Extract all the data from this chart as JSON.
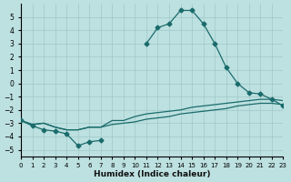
{
  "xlabel": "Humidex (Indice chaleur)",
  "xlim": [
    0,
    23
  ],
  "ylim": [
    -5.5,
    6.0
  ],
  "xticks": [
    0,
    1,
    2,
    3,
    4,
    5,
    6,
    7,
    8,
    9,
    10,
    11,
    12,
    13,
    14,
    15,
    16,
    17,
    18,
    19,
    20,
    21,
    22,
    23
  ],
  "yticks": [
    -5,
    -4,
    -3,
    -2,
    -1,
    0,
    1,
    2,
    3,
    4,
    5
  ],
  "background_color": "#bde0e0",
  "grid_color": "#a0c8c8",
  "line_color": "#1a6b6b",
  "curve_x": [
    0,
    1,
    2,
    3,
    4,
    5,
    6,
    7,
    8,
    9,
    10,
    11,
    12,
    13,
    14,
    15,
    16,
    17,
    18,
    19,
    20,
    21,
    22,
    23
  ],
  "curve_y": [
    -2.8,
    -3.2,
    -3.5,
    -3.6,
    -3.8,
    -4.7,
    -4.4,
    -4.3,
    null,
    null,
    null,
    3.0,
    4.2,
    4.5,
    5.5,
    5.5,
    4.5,
    3.0,
    1.2,
    0.0,
    -0.7,
    -0.8,
    -1.2,
    -1.7
  ],
  "line1_x": [
    0,
    1,
    2,
    3,
    4,
    5,
    6,
    7,
    8,
    9,
    10,
    11,
    12,
    13,
    14,
    15,
    16,
    17,
    18,
    19,
    20,
    21,
    22,
    23
  ],
  "line1_y": [
    -2.8,
    -3.1,
    -3.0,
    -3.3,
    -3.5,
    -3.5,
    -3.3,
    -3.3,
    -3.1,
    -3.0,
    -2.9,
    -2.7,
    -2.6,
    -2.5,
    -2.3,
    -2.2,
    -2.1,
    -2.0,
    -1.9,
    -1.7,
    -1.6,
    -1.5,
    -1.5,
    -1.6
  ],
  "line2_x": [
    0,
    1,
    2,
    3,
    4,
    5,
    6,
    7,
    8,
    9,
    10,
    11,
    12,
    13,
    14,
    15,
    16,
    17,
    18,
    19,
    20,
    21,
    22,
    23
  ],
  "line2_y": [
    -2.8,
    -3.1,
    -3.0,
    -3.3,
    -3.5,
    -3.5,
    -3.3,
    -3.3,
    -2.8,
    -2.8,
    -2.5,
    -2.3,
    -2.2,
    -2.1,
    -2.0,
    -1.8,
    -1.7,
    -1.6,
    -1.5,
    -1.4,
    -1.3,
    -1.2,
    -1.2,
    -1.3
  ]
}
